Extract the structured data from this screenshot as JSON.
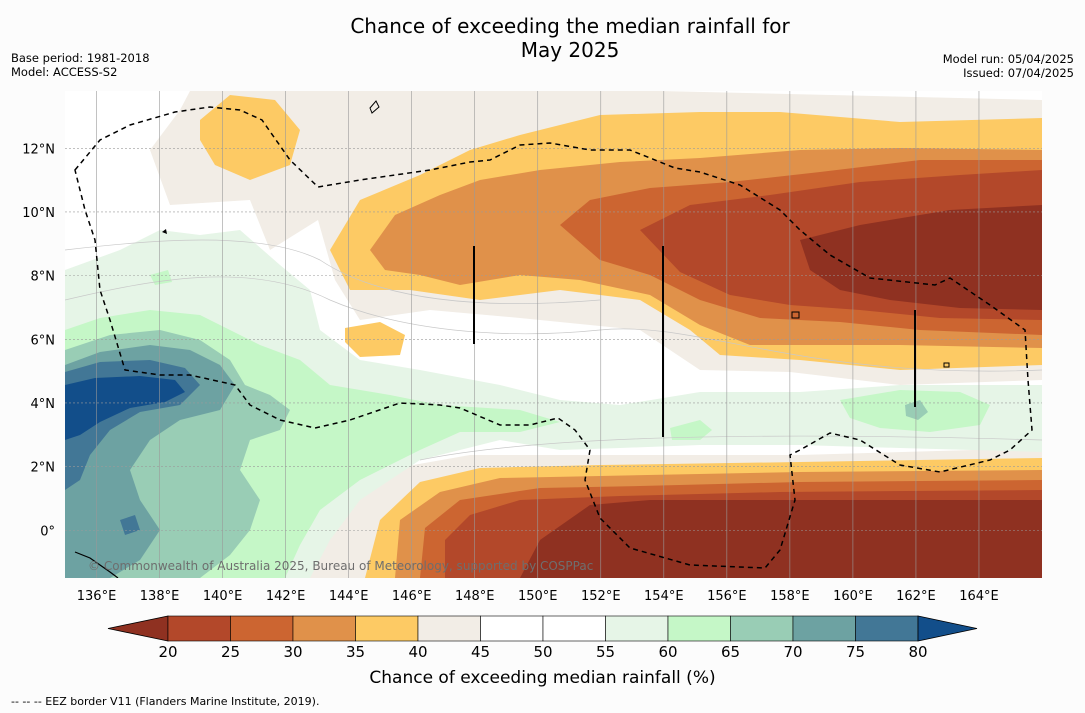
{
  "title_line1": "Chance of exceeding the median rainfall for",
  "title_line2": "May 2025",
  "meta_left": {
    "base_period": "Base period: 1981-2018",
    "model": "Model: ACCESS-S2"
  },
  "meta_right": {
    "model_run": "Model run: 05/04/2025",
    "issued": "Issued: 07/04/2025"
  },
  "map": {
    "lon_range": [
      135,
      166
    ],
    "lat_range": [
      -1.5,
      13.8
    ],
    "x_ticks": [
      "136°E",
      "138°E",
      "140°E",
      "142°E",
      "144°E",
      "146°E",
      "148°E",
      "150°E",
      "152°E",
      "154°E",
      "156°E",
      "158°E",
      "160°E",
      "162°E",
      "164°E"
    ],
    "y_ticks": [
      "0°",
      "2°N",
      "4°N",
      "6°N",
      "8°N",
      "10°N",
      "12°N"
    ],
    "copyright": "© Commonwealth of Australia 2025, Bureau of Meteorology, supported by COSPPac"
  },
  "colorbar": {
    "ticks": [
      "20",
      "25",
      "30",
      "35",
      "40",
      "45",
      "50",
      "55",
      "60",
      "65",
      "70",
      "75",
      "80"
    ],
    "colors": [
      "#8f3121",
      "#b3482a",
      "#cc6531",
      "#e0914a",
      "#fdca64",
      "#f2ede6",
      "#ffffff",
      "#ffffff",
      "#e6f5e7",
      "#c5f7c7",
      "#99cdb5",
      "#6da2a2",
      "#427796",
      "#124e8a"
    ],
    "label": "Chance of exceeding median rainfall (%)"
  },
  "footnote": "--  --  -- EEZ border V11 (Flanders Marine Institute, 2019)."
}
